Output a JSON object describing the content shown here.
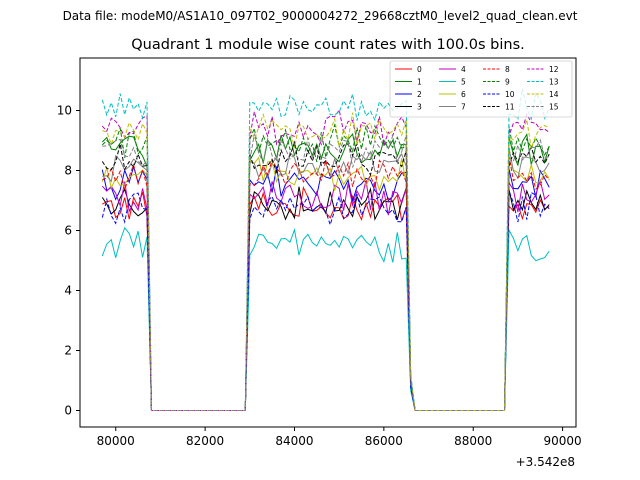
{
  "chart_data": {
    "type": "line",
    "suptitle": "Data file: modeM0/AS1A10_097T02_9000004272_29668cztM0_level2_quad_clean.evt",
    "title": "Quadrant 1 module wise count rates with 100.0s bins.",
    "xlabel": "",
    "ylabel": "",
    "x_offset_label": "+3.542e8",
    "xlim": [
      79200,
      90300
    ],
    "ylim": [
      -0.55,
      11.75
    ],
    "xticks": [
      80000,
      82000,
      84000,
      86000,
      88000,
      90000
    ],
    "xtick_labels": [
      "80000",
      "82000",
      "84000",
      "86000",
      "88000",
      "90000"
    ],
    "yticks": [
      0,
      2,
      4,
      6,
      8,
      10
    ],
    "ytick_labels": [
      "0",
      "2",
      "4",
      "6",
      "8",
      "10"
    ],
    "grid": false,
    "legend_position": "top-right",
    "segments": [
      {
        "start": 79700,
        "end": 80700
      },
      {
        "start": 82950,
        "end": 86500
      },
      {
        "start": 88750,
        "end": 89750
      }
    ],
    "gap_ranges": [
      [
        80800,
        82900
      ],
      [
        86650,
        88700
      ]
    ],
    "series": [
      {
        "name": "0",
        "color": "#ff0000",
        "dash": false,
        "level": 6.8
      },
      {
        "name": "1",
        "color": "#008000",
        "dash": false,
        "level": 8.7
      },
      {
        "name": "2",
        "color": "#0000ff",
        "dash": false,
        "level": 7.6
      },
      {
        "name": "3",
        "color": "#000000",
        "dash": false,
        "level": 6.9
      },
      {
        "name": "4",
        "color": "#bf00bf",
        "dash": false,
        "level": 7.1
      },
      {
        "name": "5",
        "color": "#00bfbf",
        "dash": false,
        "level": 5.5
      },
      {
        "name": "6",
        "color": "#bfbf00",
        "dash": false,
        "level": 7.8
      },
      {
        "name": "7",
        "color": "#808080",
        "dash": false,
        "level": 8.2
      },
      {
        "name": "8",
        "color": "#ff0000",
        "dash": true,
        "level": 7.9
      },
      {
        "name": "9",
        "color": "#008000",
        "dash": true,
        "level": 8.9
      },
      {
        "name": "10",
        "color": "#0000ff",
        "dash": true,
        "level": 6.7
      },
      {
        "name": "11",
        "color": "#000000",
        "dash": true,
        "level": 8.4
      },
      {
        "name": "12",
        "color": "#bf00bf",
        "dash": true,
        "level": 9.4
      },
      {
        "name": "13",
        "color": "#00bfbf",
        "dash": true,
        "level": 10.1
      },
      {
        "name": "14",
        "color": "#bfbf00",
        "dash": true,
        "level": 9.3
      },
      {
        "name": "15",
        "color": "#808080",
        "dash": true,
        "level": 8.6
      }
    ]
  }
}
